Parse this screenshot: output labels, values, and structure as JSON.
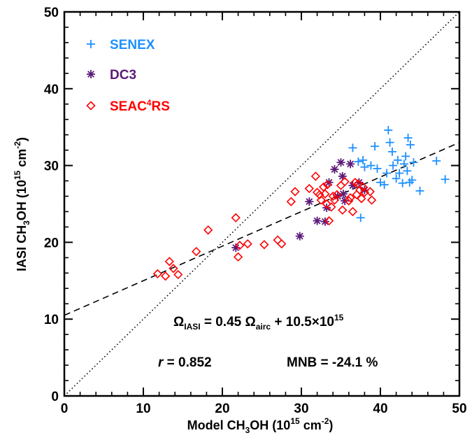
{
  "chart_data": {
    "type": "scatter",
    "xlabel_parts": [
      "Model CH",
      "3",
      "OH (10",
      "15",
      " cm",
      "-2",
      ")"
    ],
    "ylabel_parts": [
      "IASI CH",
      "3",
      "OH (10",
      "15",
      " cm",
      "-2",
      ")"
    ],
    "xlim": [
      0,
      50
    ],
    "ylim": [
      0,
      50
    ],
    "x_ticks": [
      "0",
      "10",
      "20",
      "30",
      "40",
      "50"
    ],
    "y_ticks": [
      "0",
      "10",
      "20",
      "30",
      "40",
      "50"
    ],
    "legend_position": "top-left",
    "series": [
      {
        "name": "SENEX",
        "marker": "plus",
        "color": "#1e90ff",
        "points": [
          [
            36.5,
            32.3
          ],
          [
            37.5,
            23.2
          ],
          [
            37.2,
            30.5
          ],
          [
            37.8,
            30.7
          ],
          [
            38.0,
            29.8
          ],
          [
            38.8,
            30.0
          ],
          [
            39.3,
            32.5
          ],
          [
            39.6,
            29.6
          ],
          [
            40.0,
            27.8
          ],
          [
            40.5,
            27.5
          ],
          [
            40.8,
            29.0
          ],
          [
            41.0,
            34.6
          ],
          [
            41.2,
            33.0
          ],
          [
            41.5,
            31.8
          ],
          [
            41.6,
            30.0
          ],
          [
            42.0,
            28.3
          ],
          [
            42.2,
            30.7
          ],
          [
            42.4,
            29.0
          ],
          [
            42.8,
            27.7
          ],
          [
            43.0,
            30.2
          ],
          [
            43.2,
            31.2
          ],
          [
            43.4,
            29.3
          ],
          [
            43.5,
            33.6
          ],
          [
            43.7,
            27.8
          ],
          [
            43.8,
            32.7
          ],
          [
            44.0,
            28.1
          ],
          [
            44.2,
            30.4
          ],
          [
            45.0,
            26.7
          ],
          [
            47.1,
            30.6
          ],
          [
            48.2,
            28.2
          ]
        ]
      },
      {
        "name": "DC3",
        "marker": "asterisk",
        "color": "#5b1a79",
        "points": [
          [
            21.7,
            19.3
          ],
          [
            29.8,
            20.8
          ],
          [
            31.0,
            25.3
          ],
          [
            32.0,
            22.8
          ],
          [
            33.0,
            22.7
          ],
          [
            33.2,
            24.5
          ],
          [
            33.5,
            27.8
          ],
          [
            34.2,
            29.5
          ],
          [
            34.6,
            26.0
          ],
          [
            35.0,
            30.4
          ],
          [
            35.2,
            28.6
          ],
          [
            35.3,
            26.3
          ],
          [
            35.5,
            25.4
          ],
          [
            36.2,
            30.2
          ],
          [
            36.5,
            27.4
          ],
          [
            37.3,
            27.8
          ],
          [
            38.0,
            26.8
          ]
        ]
      },
      {
        "name": "SEAC4RS",
        "marker": "diamond",
        "color": "#ff0000",
        "points": [
          [
            11.8,
            15.9
          ],
          [
            12.8,
            15.6
          ],
          [
            13.3,
            17.5
          ],
          [
            13.8,
            16.6
          ],
          [
            14.4,
            15.8
          ],
          [
            16.7,
            18.8
          ],
          [
            18.2,
            21.6
          ],
          [
            21.7,
            23.2
          ],
          [
            22.0,
            18.1
          ],
          [
            22.2,
            19.6
          ],
          [
            23.2,
            19.8
          ],
          [
            25.3,
            19.7
          ],
          [
            27.0,
            20.3
          ],
          [
            27.5,
            19.8
          ],
          [
            28.7,
            25.3
          ],
          [
            29.2,
            26.6
          ],
          [
            31.0,
            27.0
          ],
          [
            31.8,
            28.6
          ],
          [
            32.0,
            26.5
          ],
          [
            32.3,
            26.2
          ],
          [
            32.5,
            25.5
          ],
          [
            32.8,
            27.2
          ],
          [
            33.0,
            26.3
          ],
          [
            33.2,
            25.0
          ],
          [
            33.3,
            27.5
          ],
          [
            33.5,
            22.8
          ],
          [
            33.8,
            24.6
          ],
          [
            34.0,
            26.0
          ],
          [
            34.2,
            25.5
          ],
          [
            34.5,
            26.2
          ],
          [
            35.0,
            27.4
          ],
          [
            35.2,
            24.2
          ],
          [
            35.5,
            27.9
          ],
          [
            36.0,
            25.4
          ],
          [
            36.2,
            25.8
          ],
          [
            36.5,
            24.0
          ],
          [
            36.8,
            27.8
          ],
          [
            37.0,
            26.2
          ],
          [
            37.2,
            27.6
          ],
          [
            37.4,
            26.8
          ],
          [
            37.6,
            25.7
          ],
          [
            37.8,
            27.2
          ],
          [
            38.0,
            26.5
          ],
          [
            38.7,
            26.6
          ],
          [
            38.9,
            25.5
          ]
        ]
      }
    ],
    "lines": [
      {
        "kind": "one-to-one",
        "style": "dotted",
        "slope": 1,
        "intercept": 0
      },
      {
        "kind": "regression",
        "style": "dashed",
        "slope": 0.45,
        "intercept": 10.5
      }
    ],
    "annotations": {
      "equation": {
        "omega1": "Ω",
        "sub1": "IASI",
        "mid": " = 0.45 ",
        "omega2": "Ω",
        "sub2": "airc",
        "tail": " + 10.5×10",
        "sup": "15"
      },
      "r_label": "r",
      "r_value": " = 0.852",
      "mnb": "MNB = -24.1 %"
    }
  }
}
